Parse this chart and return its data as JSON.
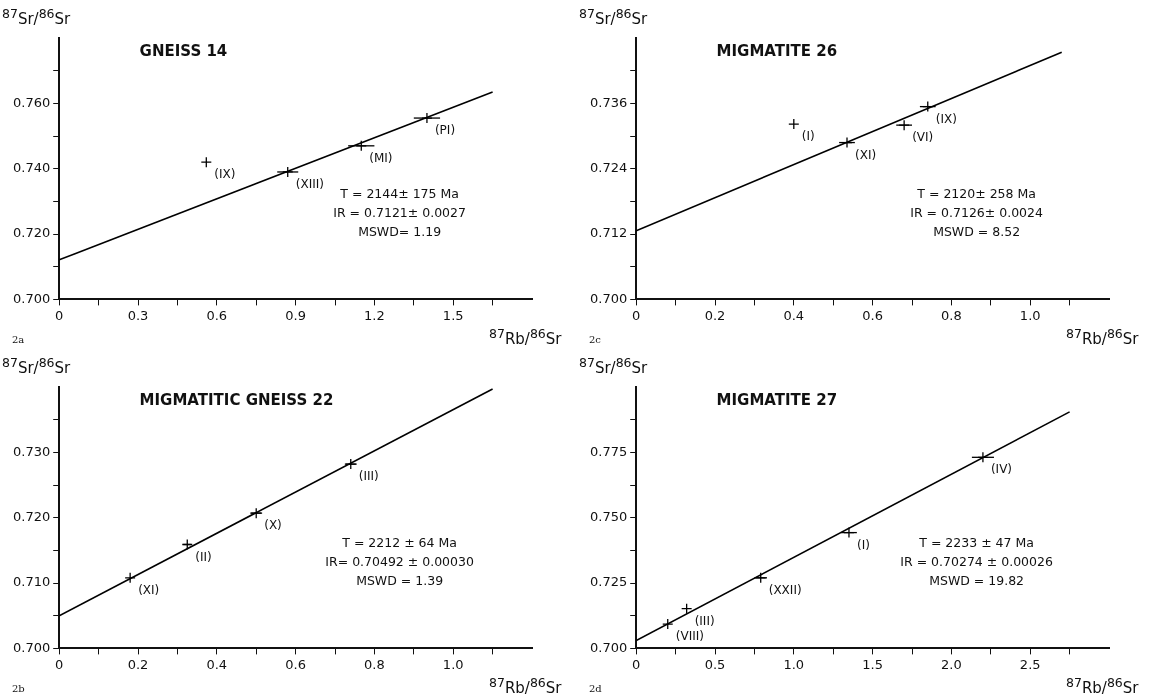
{
  "chart_data": [
    {
      "type": "scatter",
      "title": "GNEISS 14",
      "xlabel": "$^{87}$Rb/$^{86}$Sr",
      "ylabel": "$^{87}$Sr/$^{86}$Sr",
      "xlim": [
        0,
        1.8
      ],
      "ylim": [
        0.7,
        0.78
      ],
      "xticks": [
        0,
        {
          "value": 0.15,
          "label": null
        },
        0.3,
        {
          "value": 0.45,
          "label": null
        },
        0.6,
        {
          "value": 0.75,
          "label": null
        },
        0.9,
        {
          "value": 1.05,
          "label": null
        },
        1.2,
        {
          "value": 1.35,
          "label": null
        },
        1.5,
        {
          "value": 1.65,
          "label": null
        }
      ],
      "yticks": [
        {
          "value": 0.7,
          "label": "0.700"
        },
        {
          "value": 0.71,
          "label": null
        },
        {
          "value": 0.72,
          "label": "0.720"
        },
        {
          "value": 0.73,
          "label": null
        },
        {
          "value": 0.74,
          "label": "0.740"
        },
        {
          "value": 0.75,
          "label": null
        },
        {
          "value": 0.76,
          "label": "0.760"
        },
        {
          "value": 0.77,
          "label": null
        }
      ],
      "marker": "cross",
      "series": [
        {
          "color": "#000000",
          "x": [
            0.56,
            0.87,
            1.15,
            1.4
          ],
          "values": [
            0.742,
            0.739,
            0.747,
            0.7555
          ],
          "xerrors": [
            null,
            0.04,
            0.05,
            0.05
          ]
        },
        {
          "type": "line",
          "color": "#000000",
          "marker": "none",
          "x": [
            0,
            1.65
          ],
          "values": [
            0.7121,
            0.7635
          ]
        }
      ],
      "annotations": [
        {
          "text": "(IX)",
          "x": 0.56,
          "y": 0.742
        },
        {
          "text": "(XIII)",
          "x": 0.87,
          "y": 0.739
        },
        {
          "text": "(MI)",
          "x": 1.15,
          "y": 0.747
        },
        {
          "text": "(PI)",
          "x": 1.4,
          "y": 0.7555
        },
        "T = 2144± 175 Ma",
        "IR = 0.7121± 0.0027",
        "MSWD= 1.19",
        "2a"
      ]
    },
    {
      "type": "scatter",
      "title": "MIGMATITE 26",
      "xlabel": "$^{87}$Rb/$^{86}$Sr",
      "ylabel": "$^{87}$Sr/$^{86}$Sr",
      "xlim": [
        0,
        1.2
      ],
      "ylim": [
        0.7,
        0.748
      ],
      "xticks": [
        0,
        {
          "value": 0.1,
          "label": null
        },
        0.2,
        {
          "value": 0.3,
          "label": null
        },
        0.4,
        {
          "value": 0.5,
          "label": null
        },
        0.6,
        {
          "value": 0.7,
          "label": null
        },
        0.8,
        {
          "value": 0.9,
          "label": null
        },
        {
          "value": 1,
          "label": "1.0"
        },
        {
          "value": 1.1,
          "label": null
        }
      ],
      "yticks": [
        {
          "value": 0.7,
          "label": "0.700"
        },
        {
          "value": 0.706,
          "label": null
        },
        {
          "value": 0.712,
          "label": "0.712"
        },
        {
          "value": 0.718,
          "label": null
        },
        {
          "value": 0.724,
          "label": "0.724"
        },
        {
          "value": 0.73,
          "label": null
        },
        {
          "value": 0.736,
          "label": "0.736"
        },
        {
          "value": 0.742,
          "label": null
        }
      ],
      "marker": "cross",
      "series": [
        {
          "color": "#000000",
          "x": [
            0.4,
            0.535,
            0.68,
            0.74
          ],
          "values": [
            0.7322,
            0.7288,
            0.732,
            0.7354
          ],
          "xerrors": [
            null,
            0.02,
            0.02,
            0.02
          ]
        },
        {
          "type": "line",
          "color": "#000000",
          "marker": "none",
          "x": [
            0,
            1.08
          ],
          "values": [
            0.7126,
            0.7454
          ]
        }
      ],
      "annotations": [
        {
          "text": "(I)",
          "x": 0.4,
          "y": 0.7322
        },
        {
          "text": "(XI)",
          "x": 0.535,
          "y": 0.7288
        },
        {
          "text": "(VI)",
          "x": 0.68,
          "y": 0.732
        },
        {
          "text": "(IX)",
          "x": 0.74,
          "y": 0.7354
        },
        "T = 2120± 258 Ma",
        "IR = 0.7126± 0.0024",
        "MSWD = 8.52",
        "2c"
      ]
    },
    {
      "type": "scatter",
      "title": "MIGMATITIC GNEISS 22",
      "xlabel": "$^{87}$Rb/$^{86}$Sr",
      "ylabel": "$^{87}$Sr/$^{86}$Sr",
      "xlim": [
        0,
        1.2
      ],
      "ylim": [
        0.7,
        0.74
      ],
      "xticks": [
        0,
        {
          "value": 0.1,
          "label": null
        },
        0.2,
        {
          "value": 0.3,
          "label": null
        },
        0.4,
        {
          "value": 0.5,
          "label": null
        },
        0.6,
        {
          "value": 0.7,
          "label": null
        },
        0.8,
        {
          "value": 0.9,
          "label": null
        },
        {
          "value": 1,
          "label": "1.0"
        },
        {
          "value": 1.1,
          "label": null
        }
      ],
      "yticks": [
        {
          "value": 0.7,
          "label": "0.700"
        },
        {
          "value": 0.705,
          "label": null
        },
        {
          "value": 0.71,
          "label": "0.710"
        },
        {
          "value": 0.715,
          "label": null
        },
        {
          "value": 0.72,
          "label": "0.720"
        },
        {
          "value": 0.725,
          "label": null
        },
        {
          "value": 0.73,
          "label": "0.730"
        },
        {
          "value": 0.735,
          "label": null
        }
      ],
      "marker": "cross",
      "series": [
        {
          "color": "#000000",
          "x": [
            0.18,
            0.325,
            0.5,
            0.74
          ],
          "values": [
            0.7108,
            0.7159,
            0.7207,
            0.7282
          ],
          "xerrors": [
            null,
            0.01,
            0.015,
            0.015
          ]
        },
        {
          "type": "line",
          "color": "#000000",
          "marker": "none",
          "x": [
            0,
            1.1
          ],
          "values": [
            0.705,
            0.7397
          ]
        }
      ],
      "annotations": [
        {
          "text": "(XI)",
          "x": 0.18,
          "y": 0.7108
        },
        {
          "text": "(II)",
          "x": 0.325,
          "y": 0.7159
        },
        {
          "text": "(X)",
          "x": 0.5,
          "y": 0.7207
        },
        {
          "text": "(III)",
          "x": 0.74,
          "y": 0.7282
        },
        "T = 2212 ± 64 Ma",
        "IR= 0.70492 ± 0.00030",
        "MSWD = 1.39",
        "2b"
      ]
    },
    {
      "type": "scatter",
      "title": "MIGMATITE 27",
      "xlabel": "$^{87}$Rb/$^{86}$Sr",
      "ylabel": "$^{87}$Sr/$^{86}$Sr",
      "xlim": [
        0,
        3
      ],
      "ylim": [
        0.7,
        0.8
      ],
      "xticks": [
        0,
        {
          "value": 0.25,
          "label": null
        },
        0.5,
        {
          "value": 0.75,
          "label": null
        },
        {
          "value": 1,
          "label": "1.0"
        },
        {
          "value": 1.25,
          "label": null
        },
        1.5,
        {
          "value": 1.75,
          "label": null
        },
        {
          "value": 2,
          "label": "2.0"
        },
        {
          "value": 2.25,
          "label": null
        },
        2.5,
        {
          "value": 2.75,
          "label": null
        }
      ],
      "yticks": [
        {
          "value": 0.7,
          "label": "0.700"
        },
        {
          "value": 0.7125,
          "label": null
        },
        {
          "value": 0.725,
          "label": "0.725"
        },
        {
          "value": 0.7375,
          "label": null
        },
        {
          "value": 0.75,
          "label": "0.750"
        },
        {
          "value": 0.7625,
          "label": null
        },
        {
          "value": 0.775,
          "label": "0.775"
        },
        {
          "value": 0.7875,
          "label": null
        }
      ],
      "marker": "cross",
      "series": [
        {
          "color": "#000000",
          "x": [
            0.2,
            0.32,
            0.79,
            1.35,
            2.2
          ],
          "values": [
            0.7093,
            0.7152,
            0.727,
            0.7443,
            0.7731
          ],
          "xerrors": [
            null,
            null,
            0.04,
            0.05,
            0.07
          ]
        },
        {
          "type": "line",
          "color": "#000000",
          "marker": "none",
          "x": [
            0,
            2.75
          ],
          "values": [
            0.703,
            0.7905
          ]
        }
      ],
      "annotations": [
        {
          "text": "(VIII)",
          "x": 0.2,
          "y": 0.7093
        },
        {
          "text": "(III)",
          "x": 0.32,
          "y": 0.7152
        },
        {
          "text": "(XXII)",
          "x": 0.79,
          "y": 0.727
        },
        {
          "text": "(I)",
          "x": 1.35,
          "y": 0.7443
        },
        {
          "text": "(IV)",
          "x": 2.2,
          "y": 0.7731
        },
        "T = 2233 ± 47 Ma",
        "IR = 0.70274 ± 0.00026",
        "MSWD = 19.82",
        "2d"
      ]
    }
  ]
}
